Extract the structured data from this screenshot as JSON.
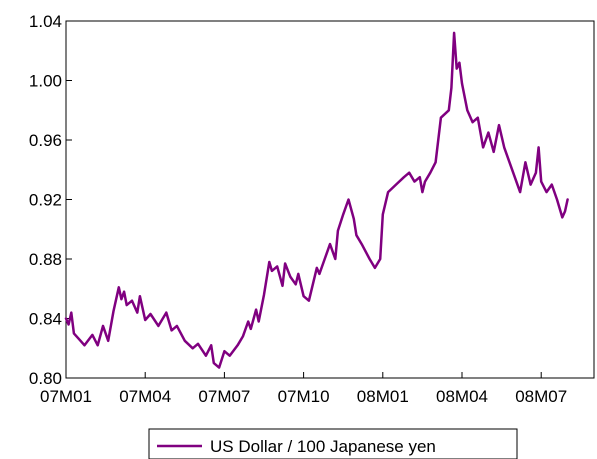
{
  "chart_data": {
    "type": "line",
    "title": "",
    "xlabel": "",
    "ylabel": "",
    "ylim": [
      0.8,
      1.04
    ],
    "yticks": [
      0.8,
      0.84,
      0.88,
      0.92,
      0.96,
      1.0,
      1.04
    ],
    "ytick_labels": [
      "0.80",
      "0.84",
      "0.88",
      "0.92",
      "0.96",
      "1.00",
      "1.04"
    ],
    "xlim": [
      1,
      21
    ],
    "xticks": [
      1,
      4,
      7,
      10,
      13,
      16,
      19
    ],
    "xtick_labels": [
      "07M01",
      "07M04",
      "07M07",
      "07M10",
      "08M01",
      "08M04",
      "08M07"
    ],
    "grid": false,
    "legend_position": "bottom-center",
    "line_color": "#800080",
    "series": [
      {
        "name": "US Dollar / 100 Japanese yen",
        "color": "#800080",
        "x": [
          1.0,
          1.1,
          1.2,
          1.3,
          1.5,
          1.7,
          2.0,
          2.2,
          2.4,
          2.6,
          2.8,
          3.0,
          3.1,
          3.2,
          3.3,
          3.5,
          3.7,
          3.8,
          4.0,
          4.2,
          4.5,
          4.8,
          5.0,
          5.2,
          5.5,
          5.8,
          6.0,
          6.3,
          6.5,
          6.6,
          6.8,
          7.0,
          7.2,
          7.5,
          7.7,
          7.9,
          8.0,
          8.2,
          8.3,
          8.5,
          8.7,
          8.8,
          9.0,
          9.2,
          9.3,
          9.5,
          9.7,
          9.8,
          10.0,
          10.2,
          10.5,
          10.6,
          10.8,
          11.0,
          11.2,
          11.3,
          11.5,
          11.7,
          11.9,
          12.0,
          12.2,
          12.5,
          12.7,
          12.9,
          13.0,
          13.2,
          13.5,
          13.8,
          14.0,
          14.2,
          14.4,
          14.5,
          14.6,
          14.8,
          15.0,
          15.2,
          15.5,
          15.6,
          15.7,
          15.8,
          15.9,
          16.0,
          16.2,
          16.4,
          16.6,
          16.8,
          17.0,
          17.2,
          17.4,
          17.6,
          17.8,
          18.0,
          18.2,
          18.4,
          18.6,
          18.8,
          18.9,
          19.0,
          19.2,
          19.4,
          19.6,
          19.8,
          19.9,
          20.0
        ],
        "values": [
          0.84,
          0.836,
          0.844,
          0.83,
          0.826,
          0.822,
          0.829,
          0.822,
          0.835,
          0.825,
          0.845,
          0.861,
          0.853,
          0.858,
          0.849,
          0.852,
          0.844,
          0.855,
          0.839,
          0.843,
          0.835,
          0.844,
          0.832,
          0.835,
          0.825,
          0.82,
          0.823,
          0.815,
          0.822,
          0.81,
          0.807,
          0.818,
          0.815,
          0.822,
          0.828,
          0.838,
          0.833,
          0.846,
          0.838,
          0.856,
          0.878,
          0.872,
          0.875,
          0.862,
          0.877,
          0.868,
          0.863,
          0.87,
          0.855,
          0.852,
          0.874,
          0.87,
          0.88,
          0.89,
          0.88,
          0.899,
          0.91,
          0.92,
          0.907,
          0.896,
          0.89,
          0.88,
          0.874,
          0.88,
          0.91,
          0.925,
          0.93,
          0.935,
          0.938,
          0.932,
          0.935,
          0.925,
          0.932,
          0.938,
          0.945,
          0.975,
          0.98,
          0.995,
          1.032,
          1.008,
          1.012,
          0.998,
          0.98,
          0.972,
          0.975,
          0.955,
          0.965,
          0.952,
          0.97,
          0.955,
          0.945,
          0.935,
          0.925,
          0.945,
          0.93,
          0.938,
          0.955,
          0.932,
          0.925,
          0.93,
          0.92,
          0.908,
          0.912,
          0.92
        ]
      }
    ]
  }
}
